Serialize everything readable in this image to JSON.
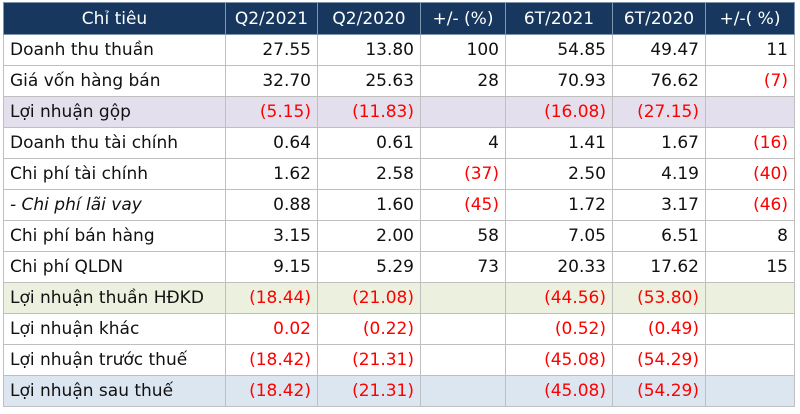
{
  "headers": [
    "Chỉ tiêu",
    "Q2/2021",
    "Q2/2020",
    "+/- (%)",
    "6T/2021",
    "6T/2020",
    "+/-( %)"
  ],
  "colors": {
    "header_bg": "#17375e",
    "negative": "#ff0000",
    "gop_bg": "#e4dfec",
    "hdkd_bg": "#ebf1de",
    "sau_thue_bg": "#dce6f1"
  },
  "rows": [
    {
      "label": "Doanh thu thuần",
      "style": "",
      "cells": [
        {
          "v": "27.55"
        },
        {
          "v": "13.80"
        },
        {
          "v": "100"
        },
        {
          "v": "54.85"
        },
        {
          "v": "49.47"
        },
        {
          "v": "11"
        }
      ]
    },
    {
      "label": "Giá vốn hàng bán",
      "style": "",
      "cells": [
        {
          "v": "32.70"
        },
        {
          "v": "25.63"
        },
        {
          "v": "28"
        },
        {
          "v": "70.93"
        },
        {
          "v": "76.62"
        },
        {
          "v": "(7)",
          "red": true
        }
      ]
    },
    {
      "label": "Lợi nhuận gộp",
      "style": "gop",
      "cells": [
        {
          "v": "(5.15)",
          "red": true
        },
        {
          "v": "(11.83)",
          "red": true
        },
        {
          "v": ""
        },
        {
          "v": "(16.08)",
          "red": true
        },
        {
          "v": "(27.15)",
          "red": true
        },
        {
          "v": ""
        }
      ]
    },
    {
      "label": "Doanh thu tài chính",
      "style": "",
      "cells": [
        {
          "v": "0.64"
        },
        {
          "v": "0.61"
        },
        {
          "v": "4"
        },
        {
          "v": "1.41"
        },
        {
          "v": "1.67"
        },
        {
          "v": "(16)",
          "red": true
        }
      ]
    },
    {
      "label": "Chi phí tài chính",
      "style": "",
      "cells": [
        {
          "v": "1.62"
        },
        {
          "v": "2.58"
        },
        {
          "v": "(37)",
          "red": true
        },
        {
          "v": "2.50"
        },
        {
          "v": "4.19"
        },
        {
          "v": "(40)",
          "red": true
        }
      ]
    },
    {
      "label": "- Chi phí lãi vay",
      "style": "it",
      "cells": [
        {
          "v": "0.88"
        },
        {
          "v": "1.60"
        },
        {
          "v": "(45)",
          "red": true
        },
        {
          "v": "1.72"
        },
        {
          "v": "3.17"
        },
        {
          "v": "(46)",
          "red": true
        }
      ]
    },
    {
      "label": "Chi phí bán hàng",
      "style": "",
      "cells": [
        {
          "v": "3.15"
        },
        {
          "v": "2.00"
        },
        {
          "v": "58"
        },
        {
          "v": "7.05"
        },
        {
          "v": "6.51"
        },
        {
          "v": "8"
        }
      ]
    },
    {
      "label": "Chi phí QLDN",
      "style": "",
      "cells": [
        {
          "v": "9.15"
        },
        {
          "v": "5.29"
        },
        {
          "v": "73"
        },
        {
          "v": "20.33"
        },
        {
          "v": "17.62"
        },
        {
          "v": "15"
        }
      ]
    },
    {
      "label": "Lợi nhuận thuần HĐKD",
      "style": "hdkd",
      "cells": [
        {
          "v": "(18.44)",
          "red": true
        },
        {
          "v": "(21.08)",
          "red": true
        },
        {
          "v": ""
        },
        {
          "v": "(44.56)",
          "red": true
        },
        {
          "v": "(53.80)",
          "red": true
        },
        {
          "v": ""
        }
      ]
    },
    {
      "label": "Lợi nhuận khác",
      "style": "",
      "cells": [
        {
          "v": "0.02",
          "red": true
        },
        {
          "v": "(0.22)",
          "red": true
        },
        {
          "v": ""
        },
        {
          "v": "(0.52)",
          "red": true
        },
        {
          "v": "(0.49)",
          "red": true
        },
        {
          "v": ""
        }
      ]
    },
    {
      "label": "Lợi nhuận trước thuế",
      "style": "",
      "cells": [
        {
          "v": "(18.42)",
          "red": true
        },
        {
          "v": "(21.31)",
          "red": true
        },
        {
          "v": ""
        },
        {
          "v": "(45.08)",
          "red": true
        },
        {
          "v": "(54.29)",
          "red": true
        },
        {
          "v": ""
        }
      ]
    },
    {
      "label": "Lợi nhuận sau thuế",
      "style": "sau",
      "cells": [
        {
          "v": "(18.42)",
          "red": true
        },
        {
          "v": "(21.31)",
          "red": true
        },
        {
          "v": ""
        },
        {
          "v": "(45.08)",
          "red": true
        },
        {
          "v": "(54.29)",
          "red": true
        },
        {
          "v": ""
        }
      ]
    }
  ]
}
